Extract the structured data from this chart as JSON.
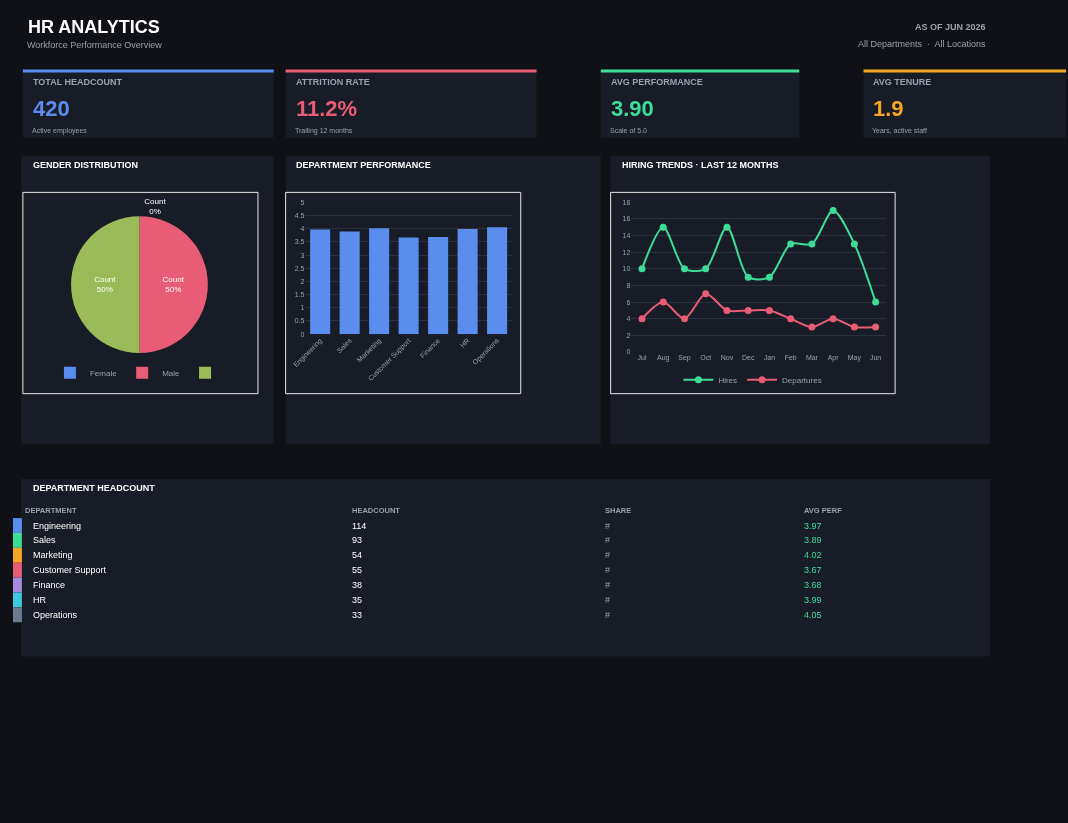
{
  "chart_data": [
    {
      "type": "other",
      "title": "HR ANALYTICS",
      "subtitle": "Workforce Performance Overview",
      "colors": [
        "#5b8def",
        "#e85d75",
        "#3ddc97",
        "#f5a623"
      ],
      "annotations": [
        "AS OF JUN 2026",
        "All Departments  ·  All Locations",
        "TOTAL HEADCOUNT",
        "420",
        "Active employees",
        "ATTRITION RATE",
        "11.2%",
        "Trailing 12 months",
        "AVG PERFORMANCE",
        "3.90",
        "Scale of 5.0",
        "AVG TENURE",
        "1.9",
        "Years, active staff"
      ]
    },
    {
      "type": "pie",
      "title": "GENDER DISTRIBUTION",
      "categories": [
        "Female",
        "Male",
        null
      ],
      "values": [
        0,
        50,
        50
      ],
      "colors": [
        "#5b8def",
        "#e85d75",
        "#9bbb59"
      ],
      "value_labels": [
        "Count\n0%",
        "Count\n50%",
        "Count\n50%"
      ],
      "legend": "bottom"
    },
    {
      "type": "bar",
      "title": "DEPARTMENT PERFORMANCE",
      "categories": [
        "Engineering",
        "Sales",
        "Marketing",
        "Customer Support",
        "Finance",
        "HR",
        "Operations"
      ],
      "values": [
        3.97,
        3.89,
        4.02,
        3.67,
        3.68,
        3.99,
        4.05
      ],
      "color": "#5b8def",
      "ylim": [
        0,
        5
      ],
      "yticks": [
        0,
        0.5,
        1,
        1.5,
        2,
        2.5,
        3,
        3.5,
        4,
        4.5,
        5
      ],
      "grid": "y"
    },
    {
      "type": "line",
      "title": "HIRING TRENDS · LAST 12 MONTHS",
      "categories": [
        "Jul",
        "Aug",
        "Sep",
        "Oct",
        "Nov",
        "Dec",
        "Jan",
        "Feb",
        "Mar",
        "Apr",
        "May",
        "Jun"
      ],
      "series": [
        {
          "name": "Hires",
          "color": "#3ddc97",
          "values": [
            10,
            15,
            10,
            10,
            15,
            9,
            9,
            13,
            13,
            17,
            13,
            6
          ]
        },
        {
          "name": "Departures",
          "color": "#e85d75",
          "values": [
            4,
            6,
            4,
            7,
            5,
            5,
            5,
            4,
            3,
            4,
            3,
            3
          ]
        }
      ],
      "ylim": [
        0,
        18
      ],
      "yticks": [
        0,
        2,
        4,
        6,
        8,
        10,
        12,
        14,
        16,
        18
      ],
      "grid": "y",
      "legend": "bottom",
      "marker": "circle",
      "line_style": "solid"
    },
    {
      "type": "other",
      "title": "DEPARTMENT HEADCOUNT",
      "colors": [
        "#5b8def",
        "#3ddc97",
        "#f5a623",
        "#e85d75",
        "#a78bde",
        "#3dc8e0",
        "#6b7b8f"
      ],
      "annotations": [
        "DEPARTMENT",
        "HEADCOUNT",
        "SHARE",
        "AVG PERF",
        "Engineering",
        "114",
        "#",
        "3.97",
        "Sales",
        "93",
        "#",
        "3.89",
        "Marketing",
        "54",
        "#",
        "4.02",
        "Customer Support",
        "55",
        "#",
        "3.67",
        "Finance",
        "38",
        "#",
        "3.68",
        "HR",
        "35",
        "#",
        "3.99",
        "Operations",
        "33",
        "#",
        "4.05"
      ]
    }
  ]
}
